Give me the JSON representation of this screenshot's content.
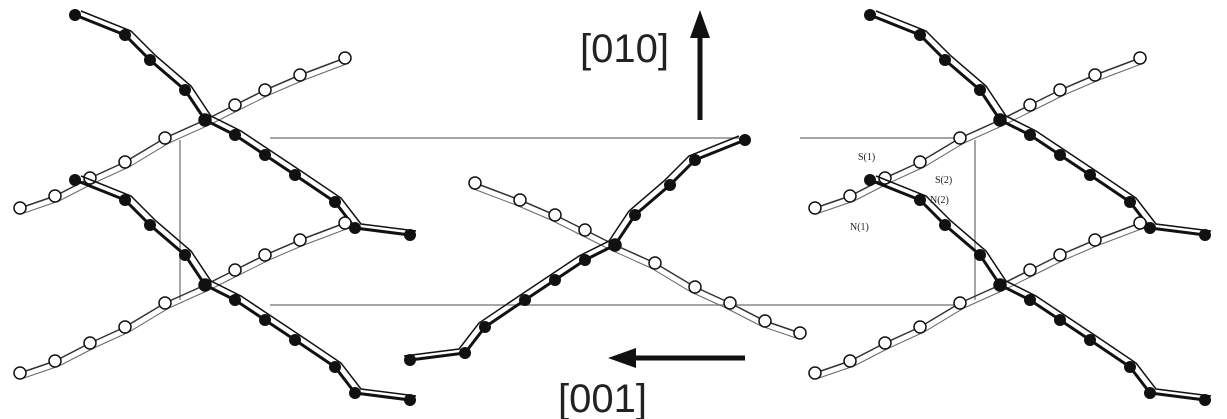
{
  "axes": {
    "vertical": "[010]",
    "horizontal": "[001]"
  },
  "atom_labels": [
    "S(1)",
    "S(2)",
    "N(2)",
    "N(1)"
  ]
}
